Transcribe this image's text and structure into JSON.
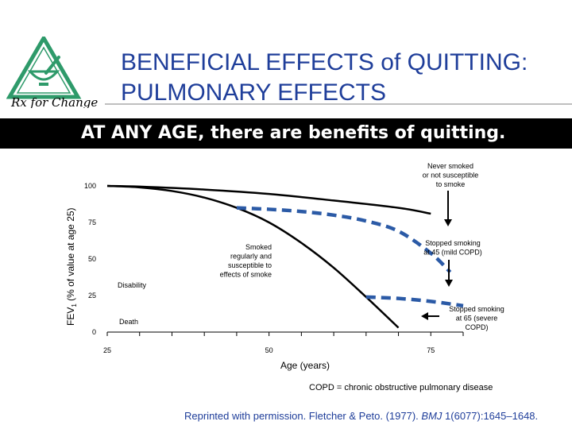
{
  "header": {
    "title_line1": "BENEFICIAL EFFECTS of QUITTING:",
    "title_line2": "PULMONARY EFFECTS",
    "banner": "AT ANY AGE, there are benefits of quitting.",
    "logo_text": "Rx for Change"
  },
  "colors": {
    "title": "#1f3e9a",
    "logo_green": "#2e9a6a",
    "curve_black": "#000000",
    "curve_blue": "#2b5aa6"
  },
  "chart_data": {
    "type": "line",
    "ylabel_main": "FEV",
    "ylabel_sub": "1",
    "ylabel_rest": " (% of value at age 25)",
    "xlabel": "Age (years)",
    "xlim": [
      25,
      80
    ],
    "ylim": [
      0,
      100
    ],
    "xticks": [
      25,
      50,
      75
    ],
    "yticks": [
      0,
      25,
      50,
      75,
      100
    ],
    "series": [
      {
        "key": "never",
        "style": "solid",
        "color": "#000000",
        "x": [
          25,
          30,
          40,
          50,
          60,
          70,
          75
        ],
        "y": [
          100,
          99.5,
          97.5,
          94.5,
          90,
          85,
          81
        ]
      },
      {
        "key": "smoked",
        "style": "solid",
        "color": "#000000",
        "x": [
          25,
          30,
          35,
          40,
          45,
          50,
          55,
          60,
          65,
          70
        ],
        "y": [
          100,
          99,
          96.5,
          92,
          85,
          75,
          61,
          44,
          24,
          3
        ]
      },
      {
        "key": "stop45",
        "style": "dashed",
        "color": "#2b5aa6",
        "x": [
          45,
          50,
          55,
          60,
          65,
          70,
          75,
          78
        ],
        "y": [
          85,
          84,
          82.5,
          80,
          76,
          69,
          54,
          41
        ]
      },
      {
        "key": "stop65",
        "style": "dashed",
        "color": "#2b5aa6",
        "x": [
          65,
          70,
          75,
          80
        ],
        "y": [
          24,
          23,
          21,
          18
        ]
      }
    ],
    "thresholds": [
      {
        "label": "Disability",
        "y": 31
      },
      {
        "label": "Death",
        "y": 8
      }
    ],
    "annotations": [
      {
        "key": "never",
        "lines": [
          "Never smoked",
          "or not susceptible",
          "to smoke"
        ]
      },
      {
        "key": "smoked",
        "lines": [
          "Smoked",
          "regularly and",
          "susceptible to",
          "effects of smoke"
        ]
      },
      {
        "key": "stop45",
        "lines": [
          "Stopped smoking",
          "at 45 (mild COPD)"
        ]
      },
      {
        "key": "stop65",
        "lines": [
          "Stopped smoking",
          "at 65 (severe",
          "COPD)"
        ]
      }
    ]
  },
  "footnote": "COPD = chronic obstructive pulmonary disease",
  "reprint": {
    "prefix": "Reprinted with permission. Fletcher & Peto. (1977). ",
    "journal": "BMJ",
    "suffix": " 1(6077):1645–1648."
  }
}
